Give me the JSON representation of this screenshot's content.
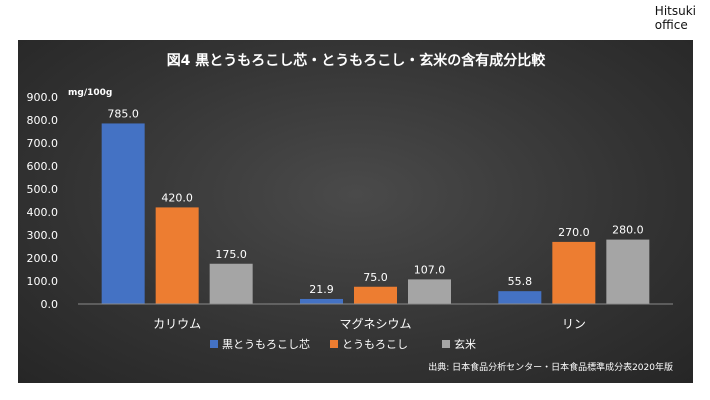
{
  "brand": {
    "line1": "Hitsuki",
    "line2": "office"
  },
  "chart_data": {
    "type": "bar",
    "title": "図4 黒とうもろこし芯・とうもろこし・玄米の含有成分比較",
    "ylabel": "mg/100g",
    "ylim": [
      0,
      900
    ],
    "yticks": [
      "0.0",
      "100.0",
      "200.0",
      "300.0",
      "400.0",
      "500.0",
      "600.0",
      "700.0",
      "800.0",
      "900.0"
    ],
    "categories": [
      "カリウム",
      "マグネシウム",
      "リン"
    ],
    "series": [
      {
        "name": "黒とうもろこし芯",
        "color": "#4472c4",
        "values": [
          785.0,
          21.9,
          55.8
        ],
        "labels": [
          "785.0",
          "21.9",
          "55.8"
        ]
      },
      {
        "name": "とうもろこし",
        "color": "#ed7d31",
        "values": [
          420.0,
          75.0,
          270.0
        ],
        "labels": [
          "420.0",
          "75.0",
          "270.0"
        ]
      },
      {
        "name": "玄米",
        "color": "#a5a5a5",
        "values": [
          175.0,
          107.0,
          280.0
        ],
        "labels": [
          "175.0",
          "107.0",
          "280.0"
        ]
      }
    ],
    "legend_position": "bottom",
    "source": "出典: 日本食品分析センター・日本食品標準成分表2020年版"
  }
}
